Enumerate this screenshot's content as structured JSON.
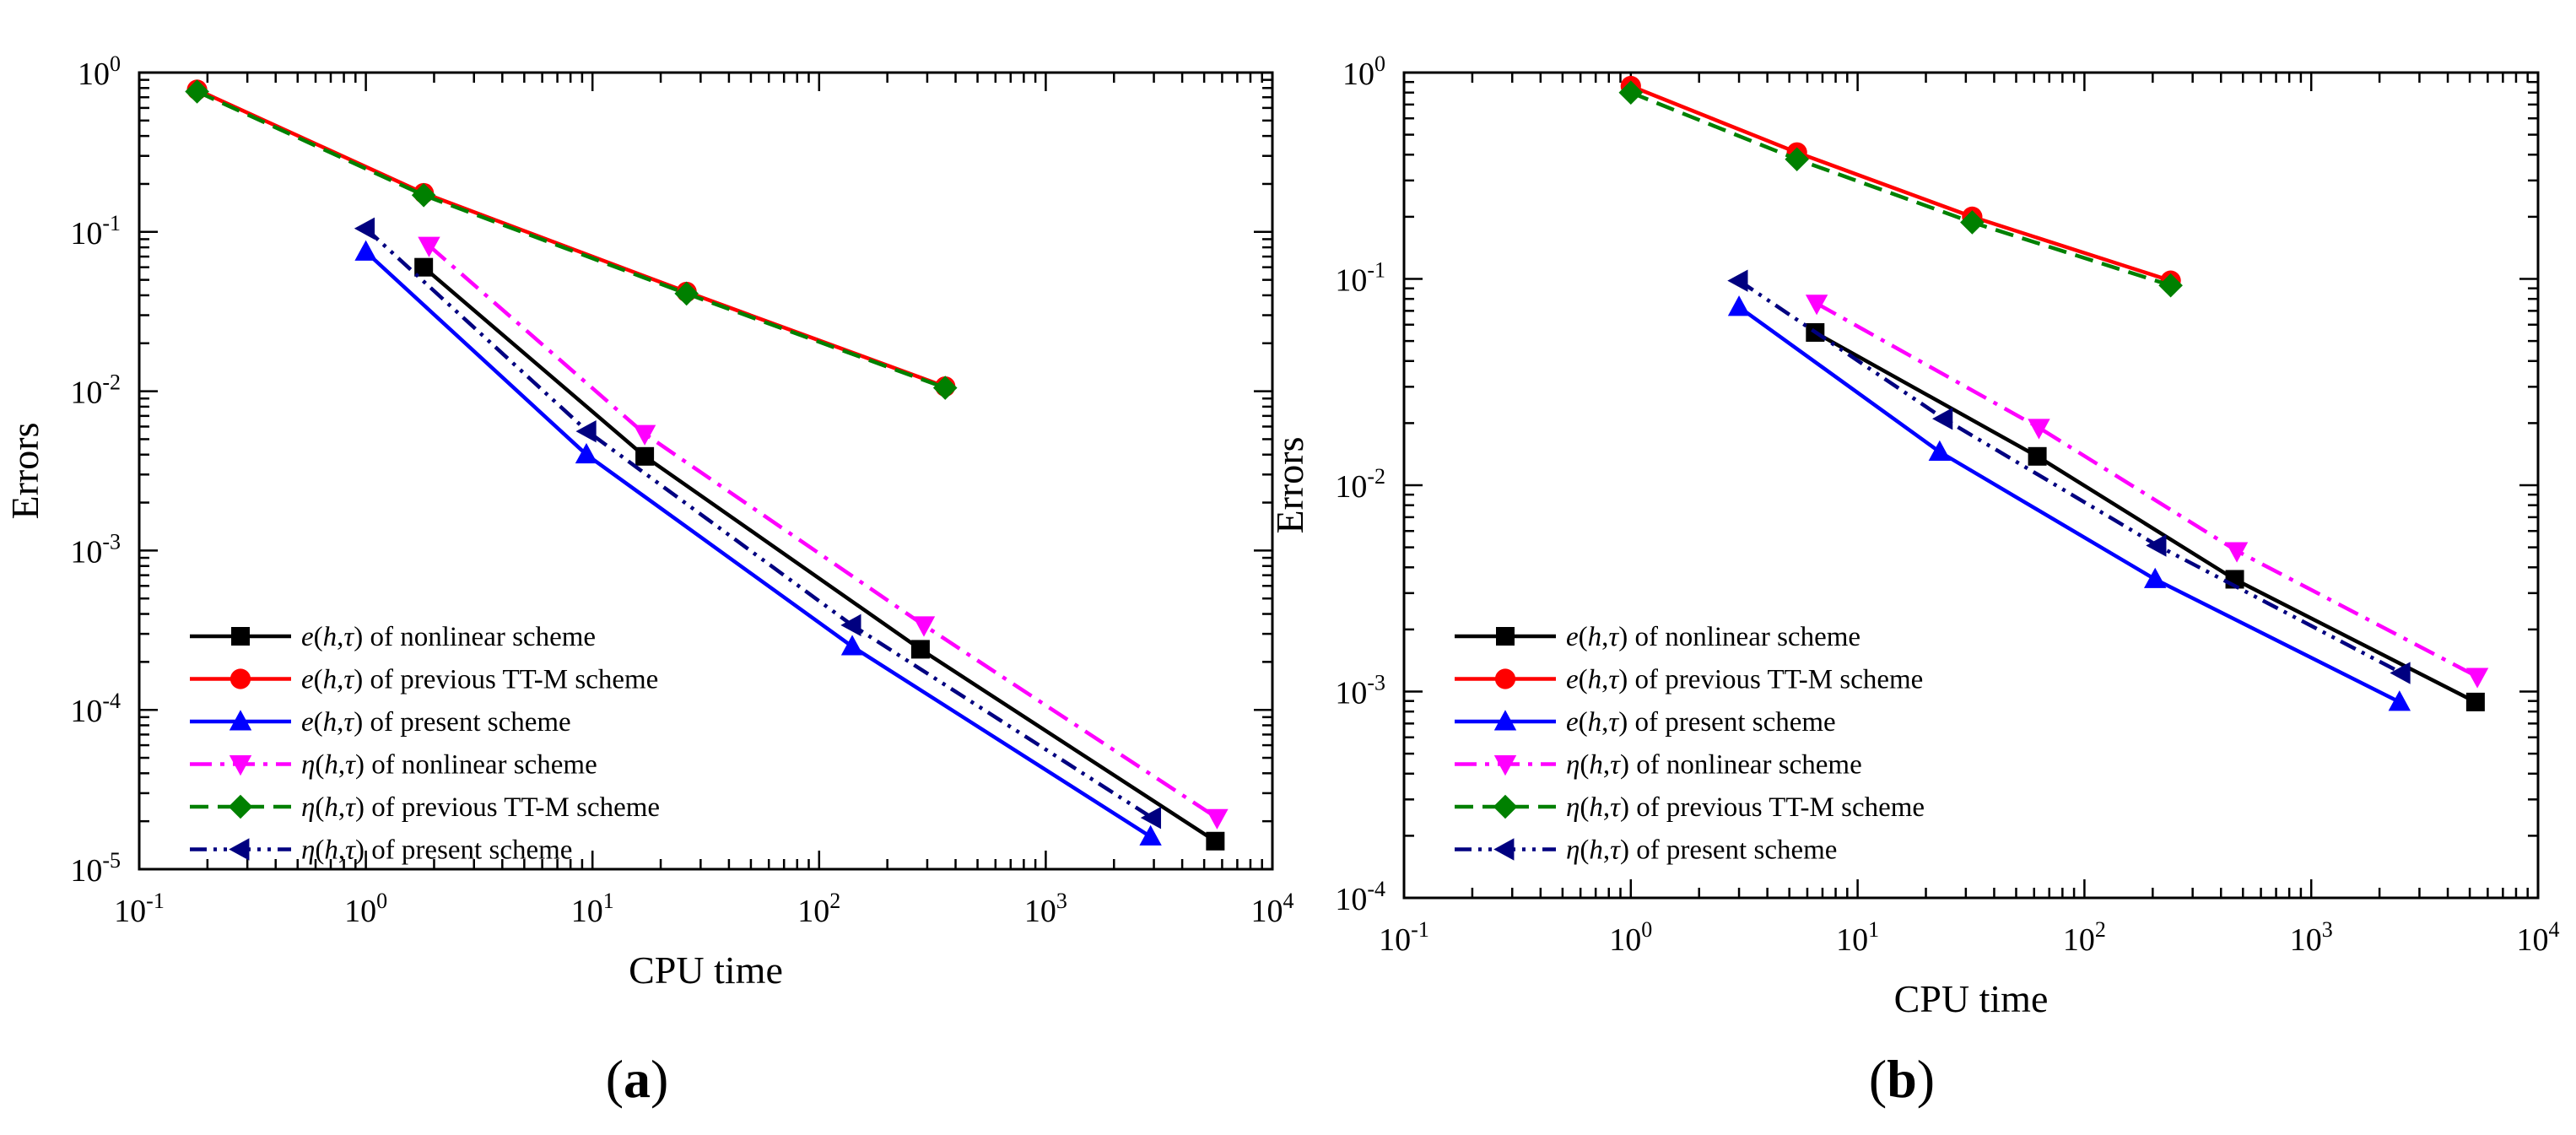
{
  "panels": [
    {
      "label_open": "(",
      "label_letter": "a",
      "label_close": ")",
      "chart_data": {
        "type": "line",
        "scale": "log-log",
        "xlabel": "CPU time",
        "ylabel": "Errors",
        "xlim": [
          0.1,
          10000
        ],
        "ylim": [
          1e-05,
          1
        ],
        "x_ticks": [
          {
            "base": "10",
            "exp": "-1"
          },
          {
            "base": "10",
            "exp": "0"
          },
          {
            "base": "10",
            "exp": "1"
          },
          {
            "base": "10",
            "exp": "2"
          },
          {
            "base": "10",
            "exp": "3"
          },
          {
            "base": "10",
            "exp": "4"
          }
        ],
        "y_ticks": [
          {
            "base": "10",
            "exp": "0"
          },
          {
            "base": "10",
            "exp": "-1"
          },
          {
            "base": "10",
            "exp": "-2"
          },
          {
            "base": "10",
            "exp": "-3"
          },
          {
            "base": "10",
            "exp": "-4"
          },
          {
            "base": "10",
            "exp": "-5"
          }
        ],
        "legend_position": "bottom-left",
        "series": [
          {
            "symbol": "e",
            "suffix": " of nonlinear scheme",
            "color": "#000000",
            "marker": "square",
            "dash": "solid",
            "x": [
              1.8,
              17,
              280,
              5600
            ],
            "y": [
              0.06,
              0.0039,
              0.00024,
              1.5e-05
            ]
          },
          {
            "symbol": "e",
            "suffix": " of previous TT-M scheme",
            "color": "#ff0000",
            "marker": "circle",
            "dash": "solid",
            "x": [
              0.18,
              1.8,
              26,
              360
            ],
            "y": [
              0.78,
              0.175,
              0.042,
              0.0107
            ]
          },
          {
            "symbol": "e",
            "suffix": " of present scheme",
            "color": "#0000ff",
            "marker": "triangle-up",
            "dash": "solid",
            "x": [
              1.0,
              9.4,
              140,
              2900
            ],
            "y": [
              0.075,
              0.004,
              0.00025,
              1.6e-05
            ]
          },
          {
            "symbol": "η",
            "suffix": " of nonlinear scheme",
            "color": "#ff00ff",
            "marker": "triangle-down",
            "dash": "dashdot",
            "x": [
              1.9,
              17,
              290,
              5700
            ],
            "y": [
              0.082,
              0.0054,
              0.00034,
              2.1e-05
            ]
          },
          {
            "symbol": "η",
            "suffix": " of previous TT-M scheme",
            "color": "#008000",
            "marker": "diamond",
            "dash": "dash",
            "x": [
              0.18,
              1.8,
              26,
              360
            ],
            "y": [
              0.76,
              0.17,
              0.041,
              0.0105
            ]
          },
          {
            "symbol": "η",
            "suffix": " of present scheme",
            "color": "#000080",
            "marker": "triangle-left",
            "dash": "dashdotdot",
            "x": [
              1.0,
              9.5,
              140,
              2950
            ],
            "y": [
              0.105,
              0.0056,
              0.00034,
              2.1e-05
            ]
          }
        ]
      }
    },
    {
      "label_open": "(",
      "label_letter": "b",
      "label_close": ")",
      "chart_data": {
        "type": "line",
        "scale": "log-log",
        "xlabel": "CPU time",
        "ylabel": "Errors",
        "xlim": [
          0.1,
          10000
        ],
        "ylim": [
          0.0001,
          1
        ],
        "x_ticks": [
          {
            "base": "10",
            "exp": "-1"
          },
          {
            "base": "10",
            "exp": "0"
          },
          {
            "base": "10",
            "exp": "1"
          },
          {
            "base": "10",
            "exp": "2"
          },
          {
            "base": "10",
            "exp": "3"
          },
          {
            "base": "10",
            "exp": "4"
          }
        ],
        "y_ticks": [
          {
            "base": "10",
            "exp": "0"
          },
          {
            "base": "10",
            "exp": "-1"
          },
          {
            "base": "10",
            "exp": "-2"
          },
          {
            "base": "10",
            "exp": "-3"
          },
          {
            "base": "10",
            "exp": "-4"
          }
        ],
        "legend_position": "bottom-left",
        "series": [
          {
            "symbol": "e",
            "suffix": " of nonlinear scheme",
            "color": "#000000",
            "marker": "square",
            "dash": "solid",
            "x": [
              6.5,
              62,
              460,
              5300
            ],
            "y": [
              0.055,
              0.0138,
              0.0035,
              0.00089
            ]
          },
          {
            "symbol": "e",
            "suffix": " of previous TT-M scheme",
            "color": "#ff0000",
            "marker": "circle",
            "dash": "solid",
            "x": [
              1.0,
              5.4,
              32,
              240
            ],
            "y": [
              0.86,
              0.41,
              0.2,
              0.098
            ]
          },
          {
            "symbol": "e",
            "suffix": " of present scheme",
            "color": "#0000ff",
            "marker": "triangle-up",
            "dash": "solid",
            "x": [
              3.0,
              23,
              205,
              2450
            ],
            "y": [
              0.073,
              0.0145,
              0.0035,
              0.00089
            ]
          },
          {
            "symbol": "η",
            "suffix": " of nonlinear scheme",
            "color": "#ff00ff",
            "marker": "triangle-down",
            "dash": "dashdot",
            "x": [
              6.6,
              63,
              470,
              5400
            ],
            "y": [
              0.076,
              0.019,
              0.0048,
              0.00118
            ]
          },
          {
            "symbol": "η",
            "suffix": " of previous TT-M scheme",
            "color": "#008000",
            "marker": "diamond",
            "dash": "dash",
            "x": [
              1.0,
              5.4,
              32,
              240
            ],
            "y": [
              0.8,
              0.38,
              0.188,
              0.093
            ]
          },
          {
            "symbol": "η",
            "suffix": " of present scheme",
            "color": "#000080",
            "marker": "triangle-left",
            "dash": "dashdotdot",
            "x": [
              3.0,
              24,
              210,
              2500
            ],
            "y": [
              0.098,
              0.021,
              0.0051,
              0.00123
            ]
          }
        ]
      }
    }
  ],
  "legend_arg": {
    "open": "(",
    "h": "h",
    "comma": ",",
    "tau": "τ",
    "close": ")"
  }
}
